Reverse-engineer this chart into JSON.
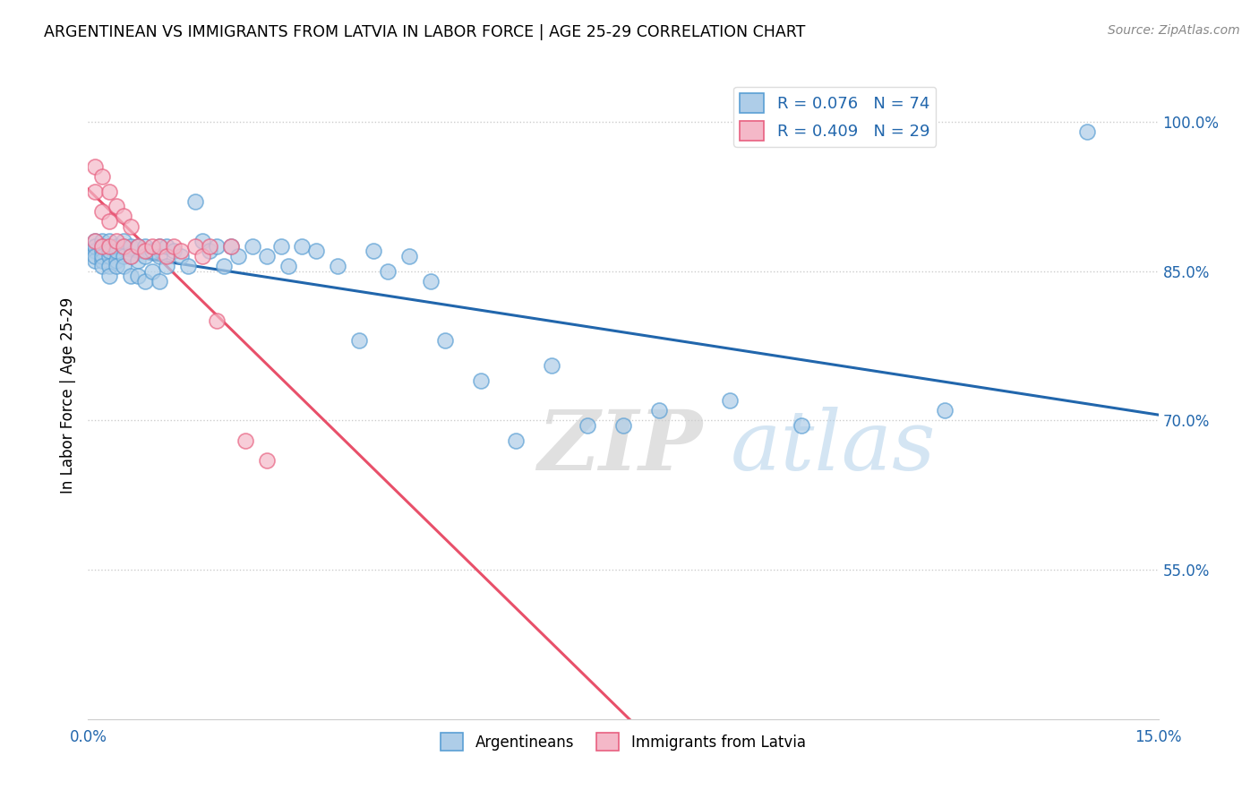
{
  "title": "ARGENTINEAN VS IMMIGRANTS FROM LATVIA IN LABOR FORCE | AGE 25-29 CORRELATION CHART",
  "source": "Source: ZipAtlas.com",
  "ylabel": "In Labor Force | Age 25-29",
  "right_yticks": [
    "100.0%",
    "85.0%",
    "70.0%",
    "55.0%"
  ],
  "right_ytick_vals": [
    1.0,
    0.85,
    0.7,
    0.55
  ],
  "xlim": [
    0.0,
    0.15
  ],
  "ylim": [
    0.4,
    1.05
  ],
  "blue_R": 0.076,
  "blue_N": 74,
  "pink_R": 0.409,
  "pink_N": 29,
  "blue_color": "#aecde8",
  "pink_color": "#f4b8c8",
  "blue_edge_color": "#5a9fd4",
  "pink_edge_color": "#e86080",
  "blue_line_color": "#2166ac",
  "pink_line_color": "#e8506a",
  "watermark_zip": "ZIP",
  "watermark_atlas": "atlas",
  "blue_points_x": [
    0.001,
    0.001,
    0.001,
    0.001,
    0.001,
    0.002,
    0.002,
    0.002,
    0.002,
    0.002,
    0.002,
    0.003,
    0.003,
    0.003,
    0.003,
    0.003,
    0.003,
    0.004,
    0.004,
    0.004,
    0.004,
    0.005,
    0.005,
    0.005,
    0.005,
    0.006,
    0.006,
    0.006,
    0.007,
    0.007,
    0.007,
    0.008,
    0.008,
    0.008,
    0.009,
    0.009,
    0.01,
    0.01,
    0.01,
    0.011,
    0.011,
    0.012,
    0.013,
    0.014,
    0.015,
    0.016,
    0.017,
    0.018,
    0.019,
    0.02,
    0.021,
    0.023,
    0.025,
    0.027,
    0.028,
    0.03,
    0.032,
    0.035,
    0.038,
    0.04,
    0.042,
    0.045,
    0.048,
    0.05,
    0.055,
    0.06,
    0.065,
    0.07,
    0.075,
    0.08,
    0.09,
    0.1,
    0.12,
    0.14
  ],
  "blue_points_y": [
    0.88,
    0.87,
    0.86,
    0.875,
    0.865,
    0.88,
    0.87,
    0.875,
    0.86,
    0.865,
    0.855,
    0.875,
    0.865,
    0.88,
    0.87,
    0.855,
    0.845,
    0.875,
    0.86,
    0.87,
    0.855,
    0.875,
    0.865,
    0.88,
    0.855,
    0.875,
    0.865,
    0.845,
    0.875,
    0.86,
    0.845,
    0.875,
    0.865,
    0.84,
    0.87,
    0.85,
    0.875,
    0.865,
    0.84,
    0.875,
    0.855,
    0.87,
    0.865,
    0.855,
    0.92,
    0.88,
    0.87,
    0.875,
    0.855,
    0.875,
    0.865,
    0.875,
    0.865,
    0.875,
    0.855,
    0.875,
    0.87,
    0.855,
    0.78,
    0.87,
    0.85,
    0.865,
    0.84,
    0.78,
    0.74,
    0.68,
    0.755,
    0.695,
    0.695,
    0.71,
    0.72,
    0.695,
    0.71,
    0.99
  ],
  "pink_points_x": [
    0.001,
    0.001,
    0.001,
    0.002,
    0.002,
    0.002,
    0.003,
    0.003,
    0.003,
    0.004,
    0.004,
    0.005,
    0.005,
    0.006,
    0.006,
    0.007,
    0.008,
    0.009,
    0.01,
    0.011,
    0.012,
    0.013,
    0.015,
    0.016,
    0.017,
    0.018,
    0.02,
    0.022,
    0.025
  ],
  "pink_points_y": [
    0.955,
    0.93,
    0.88,
    0.945,
    0.91,
    0.875,
    0.93,
    0.9,
    0.875,
    0.915,
    0.88,
    0.905,
    0.875,
    0.895,
    0.865,
    0.875,
    0.87,
    0.875,
    0.875,
    0.865,
    0.875,
    0.87,
    0.875,
    0.865,
    0.875,
    0.8,
    0.875,
    0.68,
    0.66
  ]
}
